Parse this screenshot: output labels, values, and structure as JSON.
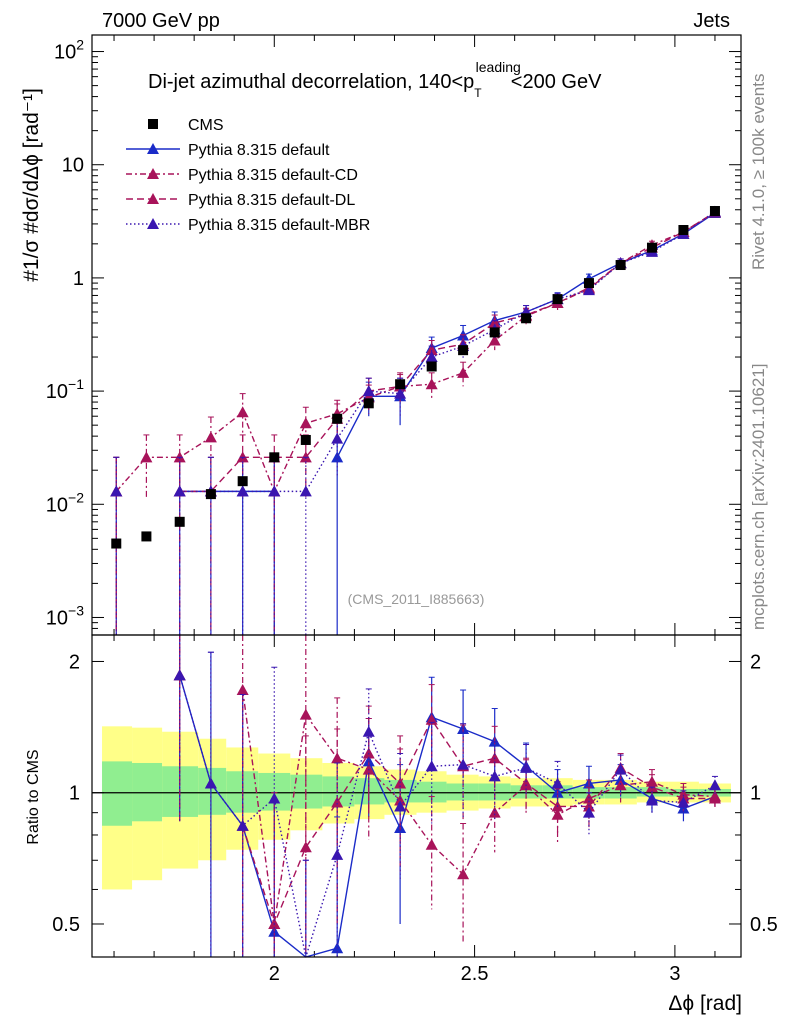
{
  "header": {
    "left": "7000 GeV pp",
    "right": "Jets"
  },
  "side_labels": {
    "rivet": "Rivet 4.1.0, ≥ 100k events",
    "mcplots": "mcplots.cern.ch [arXiv:2401.10621]"
  },
  "watermark": "(CMS_2011_I885663)",
  "chart_data": {
    "type": "line",
    "title_prefix": "Di-jet azimuthal decorrelation, 140<p",
    "title_sub": "T",
    "title_sup": "leading",
    "title_suffix": "<200 GeV",
    "xlabel": "Δϕ [rad]",
    "ylabel_main": "#1/σ #dσ/dΔϕ [rad⁻¹]",
    "ylabel_ratio": "Ratio to CMS",
    "xlim": [
      1.545,
      3.165
    ],
    "ylim_main": [
      0.0007,
      140
    ],
    "ylim_ratio": [
      0.42,
      2.3
    ],
    "x_ticks": [
      {
        "value": 2,
        "label": "2"
      },
      {
        "value": 2.5,
        "label": "2.5"
      },
      {
        "value": 3,
        "label": "3"
      }
    ],
    "y_ticks_main": [
      {
        "value": 0.001,
        "base": "10",
        "exp": "−3"
      },
      {
        "value": 0.01,
        "base": "10",
        "exp": "−2"
      },
      {
        "value": 0.1,
        "base": "10",
        "exp": "−1"
      },
      {
        "value": 1,
        "base": "1",
        "exp": ""
      },
      {
        "value": 10,
        "base": "10",
        "exp": ""
      },
      {
        "value": 100,
        "base": "10",
        "exp": "2"
      }
    ],
    "y_ticks_ratio": [
      {
        "value": 0.5,
        "label": "0.5"
      },
      {
        "value": 1,
        "label": "1"
      },
      {
        "value": 2,
        "label": "2"
      }
    ],
    "x": [
      1.6056,
      1.6808,
      1.7639,
      1.8418,
      1.9211,
      2.0,
      2.0787,
      2.157,
      2.2358,
      2.3141,
      2.3929,
      2.4713,
      2.5502,
      2.6285,
      2.7071,
      2.7855,
      2.8645,
      2.9428,
      3.0213,
      3.1
    ],
    "band_bins": [
      {
        "x0": 1.57,
        "x1": 1.645,
        "stat_lo": 0.84,
        "stat_hi": 1.18,
        "tot_lo": 0.6,
        "tot_hi": 1.42
      },
      {
        "x0": 1.645,
        "x1": 1.72,
        "stat_lo": 0.86,
        "stat_hi": 1.17,
        "tot_lo": 0.63,
        "tot_hi": 1.41
      },
      {
        "x0": 1.72,
        "x1": 1.81,
        "stat_lo": 0.88,
        "stat_hi": 1.15,
        "tot_lo": 0.67,
        "tot_hi": 1.38
      },
      {
        "x0": 1.81,
        "x1": 1.88,
        "stat_lo": 0.89,
        "stat_hi": 1.14,
        "tot_lo": 0.7,
        "tot_hi": 1.33
      },
      {
        "x0": 1.88,
        "x1": 1.96,
        "stat_lo": 0.9,
        "stat_hi": 1.12,
        "tot_lo": 0.74,
        "tot_hi": 1.27
      },
      {
        "x0": 1.96,
        "x1": 2.04,
        "stat_lo": 0.91,
        "stat_hi": 1.11,
        "tot_lo": 0.78,
        "tot_hi": 1.23
      },
      {
        "x0": 2.04,
        "x1": 2.12,
        "stat_lo": 0.92,
        "stat_hi": 1.1,
        "tot_lo": 0.82,
        "tot_hi": 1.2
      },
      {
        "x0": 2.12,
        "x1": 2.2,
        "stat_lo": 0.93,
        "stat_hi": 1.09,
        "tot_lo": 0.85,
        "tot_hi": 1.17
      },
      {
        "x0": 2.2,
        "x1": 2.275,
        "stat_lo": 0.94,
        "stat_hi": 1.08,
        "tot_lo": 0.87,
        "tot_hi": 1.15
      },
      {
        "x0": 2.275,
        "x1": 2.355,
        "stat_lo": 0.95,
        "stat_hi": 1.07,
        "tot_lo": 0.89,
        "tot_hi": 1.13
      },
      {
        "x0": 2.355,
        "x1": 2.43,
        "stat_lo": 0.95,
        "stat_hi": 1.06,
        "tot_lo": 0.9,
        "tot_hi": 1.12
      },
      {
        "x0": 2.43,
        "x1": 2.51,
        "stat_lo": 0.96,
        "stat_hi": 1.05,
        "tot_lo": 0.91,
        "tot_hi": 1.1
      },
      {
        "x0": 2.51,
        "x1": 2.59,
        "stat_lo": 0.96,
        "stat_hi": 1.05,
        "tot_lo": 0.92,
        "tot_hi": 1.09
      },
      {
        "x0": 2.59,
        "x1": 2.67,
        "stat_lo": 0.97,
        "stat_hi": 1.04,
        "tot_lo": 0.93,
        "tot_hi": 1.08
      },
      {
        "x0": 2.67,
        "x1": 2.745,
        "stat_lo": 0.97,
        "stat_hi": 1.04,
        "tot_lo": 0.93,
        "tot_hi": 1.08
      },
      {
        "x0": 2.745,
        "x1": 2.825,
        "stat_lo": 0.97,
        "stat_hi": 1.03,
        "tot_lo": 0.94,
        "tot_hi": 1.07
      },
      {
        "x0": 2.825,
        "x1": 2.905,
        "stat_lo": 0.97,
        "stat_hi": 1.03,
        "tot_lo": 0.94,
        "tot_hi": 1.07
      },
      {
        "x0": 2.905,
        "x1": 2.985,
        "stat_lo": 0.98,
        "stat_hi": 1.03,
        "tot_lo": 0.95,
        "tot_hi": 1.06
      },
      {
        "x0": 2.985,
        "x1": 3.06,
        "stat_lo": 0.98,
        "stat_hi": 1.02,
        "tot_lo": 0.95,
        "tot_hi": 1.06
      },
      {
        "x0": 3.06,
        "x1": 3.14,
        "stat_lo": 0.98,
        "stat_hi": 1.02,
        "tot_lo": 0.95,
        "tot_hi": 1.05
      }
    ],
    "data_series": {
      "name": "CMS",
      "color": "#000000",
      "values": [
        0.0045,
        0.0052,
        0.007,
        0.0123,
        0.016,
        0.026,
        0.037,
        0.057,
        0.078,
        0.115,
        0.165,
        0.23,
        0.33,
        0.44,
        0.65,
        0.9,
        1.3,
        1.85,
        2.65,
        3.9
      ]
    },
    "series": [
      {
        "name": "Pythia 8.315 default",
        "color": "#1a2bc8",
        "dash": "",
        "values": [
          0.013,
          null,
          0.013,
          0.013,
          0.013,
          0.013,
          null,
          0.026,
          0.09,
          0.09,
          0.24,
          0.31,
          0.42,
          0.5,
          0.65,
          0.98,
          1.35,
          1.75,
          2.45,
          3.75
        ],
        "err_main": [
          0.013,
          null,
          0.013,
          0.013,
          0.013,
          0.013,
          null,
          0.026,
          0.03,
          0.04,
          0.06,
          0.07,
          0.08,
          0.07,
          0.09,
          0.1,
          0.12,
          0.15,
          0.18,
          0.25
        ],
        "ratio": [
          null,
          null,
          1.86,
          1.05,
          0.84,
          0.48,
          0.35,
          0.44,
          1.18,
          0.83,
          1.49,
          1.4,
          1.31,
          1.15,
          1.0,
          1.05,
          1.07,
          0.97,
          0.92,
          0.98
        ],
        "ratio_err": [
          null,
          null,
          1.0,
          1.05,
          0.84,
          0.48,
          0.35,
          0.44,
          0.3,
          0.33,
          0.35,
          0.32,
          0.25,
          0.15,
          0.13,
          0.1,
          0.09,
          0.07,
          0.06,
          0.05
        ]
      },
      {
        "name": "Pythia 8.315 default-CD",
        "color": "#a8135a",
        "dash": "6,3,2,3",
        "values": [
          0.013,
          0.026,
          0.026,
          0.039,
          0.065,
          0.013,
          0.052,
          0.063,
          0.088,
          0.11,
          0.115,
          0.145,
          0.28,
          0.46,
          0.6,
          0.8,
          1.35,
          1.95,
          2.55,
          3.8
        ],
        "err_main": [
          0.013,
          0.015,
          0.015,
          0.02,
          0.03,
          0.013,
          0.02,
          0.02,
          0.025,
          0.03,
          0.03,
          0.035,
          0.05,
          0.07,
          0.08,
          0.09,
          0.12,
          0.16,
          0.18,
          0.25
        ],
        "ratio": [
          null,
          null,
          1.86,
          null,
          1.72,
          0.5,
          1.51,
          1.2,
          1.13,
          0.96,
          0.76,
          0.65,
          0.9,
          1.04,
          0.89,
          0.97,
          1.04,
          1.06,
          0.99,
          0.98
        ],
        "ratio_err": [
          null,
          null,
          1.0,
          null,
          1.0,
          0.5,
          0.8,
          0.45,
          0.35,
          0.3,
          0.22,
          0.2,
          0.17,
          0.15,
          0.13,
          0.1,
          0.09,
          0.07,
          0.06,
          0.05
        ]
      },
      {
        "name": "Pythia 8.315 default-DL",
        "color": "#a8135a",
        "dash": "7,4",
        "values": [
          0.013,
          null,
          0.013,
          0.013,
          0.026,
          0.026,
          0.026,
          0.057,
          0.1,
          0.11,
          0.23,
          0.26,
          0.4,
          0.47,
          0.6,
          0.82,
          1.35,
          1.85,
          2.55,
          3.8
        ],
        "err_main": [
          0.013,
          null,
          0.013,
          0.013,
          0.015,
          0.015,
          0.015,
          0.02,
          0.03,
          0.035,
          0.05,
          0.055,
          0.07,
          0.07,
          0.08,
          0.09,
          0.12,
          0.15,
          0.18,
          0.25
        ],
        "ratio": [
          null,
          null,
          1.86,
          null,
          0.84,
          0.5,
          0.75,
          0.95,
          1.23,
          1.05,
          1.47,
          1.15,
          1.2,
          1.05,
          0.93,
          0.93,
          1.14,
          1.03,
          0.97,
          0.97
        ],
        "ratio_err": [
          null,
          null,
          1.0,
          null,
          0.84,
          0.5,
          0.6,
          0.45,
          0.35,
          0.3,
          0.3,
          0.28,
          0.22,
          0.15,
          0.13,
          0.1,
          0.09,
          0.07,
          0.06,
          0.05
        ]
      },
      {
        "name": "Pythia 8.315 default-MBR",
        "color": "#3a16b0",
        "dash": "1.5,2.5",
        "values": [
          0.013,
          null,
          0.013,
          0.013,
          0.013,
          0.013,
          0.013,
          0.038,
          0.1,
          0.095,
          0.2,
          0.25,
          0.35,
          0.5,
          0.65,
          0.78,
          1.35,
          1.7,
          2.45,
          3.85
        ],
        "err_main": [
          0.013,
          null,
          0.013,
          0.013,
          0.013,
          0.013,
          0.013,
          0.02,
          0.03,
          0.035,
          0.05,
          0.055,
          0.07,
          0.07,
          0.08,
          0.09,
          0.12,
          0.15,
          0.18,
          0.25
        ],
        "ratio": [
          null,
          null,
          1.86,
          1.05,
          0.84,
          0.97,
          0.35,
          0.72,
          1.38,
          0.93,
          1.15,
          1.16,
          1.09,
          1.14,
          1.05,
          0.9,
          1.13,
          0.96,
          0.95,
          1.04
        ],
        "ratio_err": [
          null,
          null,
          1.0,
          1.05,
          0.84,
          0.97,
          0.35,
          0.45,
          0.35,
          0.3,
          0.3,
          0.28,
          0.22,
          0.15,
          0.13,
          0.1,
          0.09,
          0.07,
          0.06,
          0.05
        ]
      }
    ]
  }
}
